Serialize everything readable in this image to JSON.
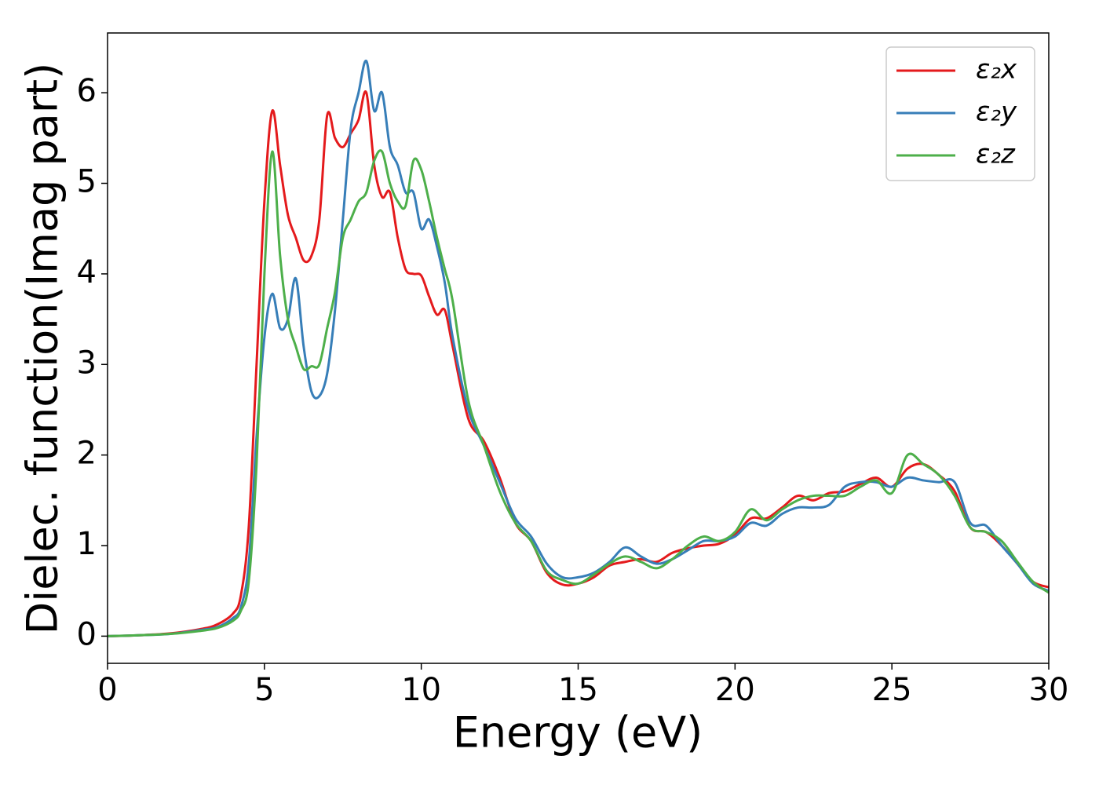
{
  "chart_data": {
    "type": "line",
    "xlabel": "Energy (eV)",
    "ylabel": "Dielec. function(Imag part)",
    "x": [
      0,
      1,
      2,
      3,
      3.5,
      4,
      4.25,
      4.5,
      4.75,
      5,
      5.25,
      5.5,
      5.75,
      6,
      6.25,
      6.5,
      6.75,
      7,
      7.25,
      7.5,
      7.75,
      8,
      8.25,
      8.5,
      8.75,
      9,
      9.25,
      9.5,
      9.75,
      10,
      10.25,
      10.5,
      10.75,
      11,
      11.5,
      12,
      12.5,
      13,
      13.5,
      14,
      14.5,
      15,
      15.5,
      16,
      16.5,
      17,
      17.5,
      18,
      18.5,
      19,
      19.5,
      20,
      20.5,
      21,
      21.5,
      22,
      22.5,
      23,
      23.5,
      24,
      24.5,
      25,
      25.5,
      26,
      26.5,
      27,
      27.5,
      28,
      28.5,
      29,
      29.5,
      30
    ],
    "series": [
      {
        "name": "ε₂x",
        "color": "#e41a1c",
        "values": [
          0,
          0.01,
          0.03,
          0.08,
          0.13,
          0.25,
          0.45,
          1.2,
          3.0,
          4.8,
          5.8,
          5.2,
          4.65,
          4.4,
          4.15,
          4.2,
          4.6,
          5.75,
          5.5,
          5.4,
          5.55,
          5.7,
          6.0,
          5.2,
          4.85,
          4.9,
          4.4,
          4.05,
          4.0,
          3.98,
          3.75,
          3.55,
          3.6,
          3.2,
          2.4,
          2.15,
          1.75,
          1.25,
          1.05,
          0.7,
          0.57,
          0.58,
          0.65,
          0.78,
          0.82,
          0.85,
          0.82,
          0.92,
          0.97,
          1.0,
          1.02,
          1.12,
          1.3,
          1.3,
          1.42,
          1.55,
          1.5,
          1.58,
          1.6,
          1.68,
          1.75,
          1.65,
          1.85,
          1.9,
          1.78,
          1.6,
          1.2,
          1.15,
          1.0,
          0.8,
          0.6,
          0.54
        ]
      },
      {
        "name": "ε₂y",
        "color": "#377eb8",
        "values": [
          0,
          0.01,
          0.025,
          0.07,
          0.1,
          0.2,
          0.32,
          0.8,
          2.2,
          3.3,
          3.78,
          3.4,
          3.5,
          3.95,
          3.2,
          2.7,
          2.65,
          2.9,
          3.6,
          4.6,
          5.6,
          6.0,
          6.35,
          5.8,
          6.0,
          5.4,
          5.2,
          4.9,
          4.9,
          4.5,
          4.6,
          4.3,
          3.9,
          3.3,
          2.5,
          2.1,
          1.7,
          1.3,
          1.1,
          0.8,
          0.65,
          0.65,
          0.7,
          0.82,
          0.98,
          0.88,
          0.8,
          0.85,
          0.95,
          1.05,
          1.05,
          1.1,
          1.25,
          1.22,
          1.35,
          1.42,
          1.42,
          1.45,
          1.65,
          1.7,
          1.7,
          1.65,
          1.75,
          1.72,
          1.7,
          1.7,
          1.25,
          1.22,
          1.0,
          0.8,
          0.58,
          0.5
        ]
      },
      {
        "name": "ε₂z",
        "color": "#4daf4a",
        "values": [
          0,
          0.01,
          0.025,
          0.06,
          0.09,
          0.17,
          0.28,
          0.6,
          1.9,
          4.0,
          5.35,
          4.2,
          3.5,
          3.2,
          2.95,
          2.98,
          3.0,
          3.4,
          3.8,
          4.4,
          4.6,
          4.8,
          4.9,
          5.25,
          5.35,
          5.0,
          4.8,
          4.75,
          5.25,
          5.15,
          4.8,
          4.4,
          4.05,
          3.7,
          2.6,
          2.1,
          1.6,
          1.25,
          1.05,
          0.72,
          0.62,
          0.58,
          0.68,
          0.8,
          0.88,
          0.82,
          0.75,
          0.85,
          1.0,
          1.1,
          1.05,
          1.15,
          1.4,
          1.28,
          1.4,
          1.5,
          1.55,
          1.55,
          1.55,
          1.65,
          1.72,
          1.58,
          2.0,
          1.9,
          1.78,
          1.55,
          1.2,
          1.15,
          1.05,
          0.82,
          0.6,
          0.48
        ]
      }
    ],
    "xlim": [
      0,
      30
    ],
    "xticks": [
      0,
      5,
      10,
      15,
      20,
      25,
      30
    ],
    "ylim": [
      -0.3,
      6.66
    ],
    "yticks": [
      0,
      1,
      2,
      3,
      4,
      5,
      6
    ],
    "legend": "upper right",
    "grid": false
  }
}
